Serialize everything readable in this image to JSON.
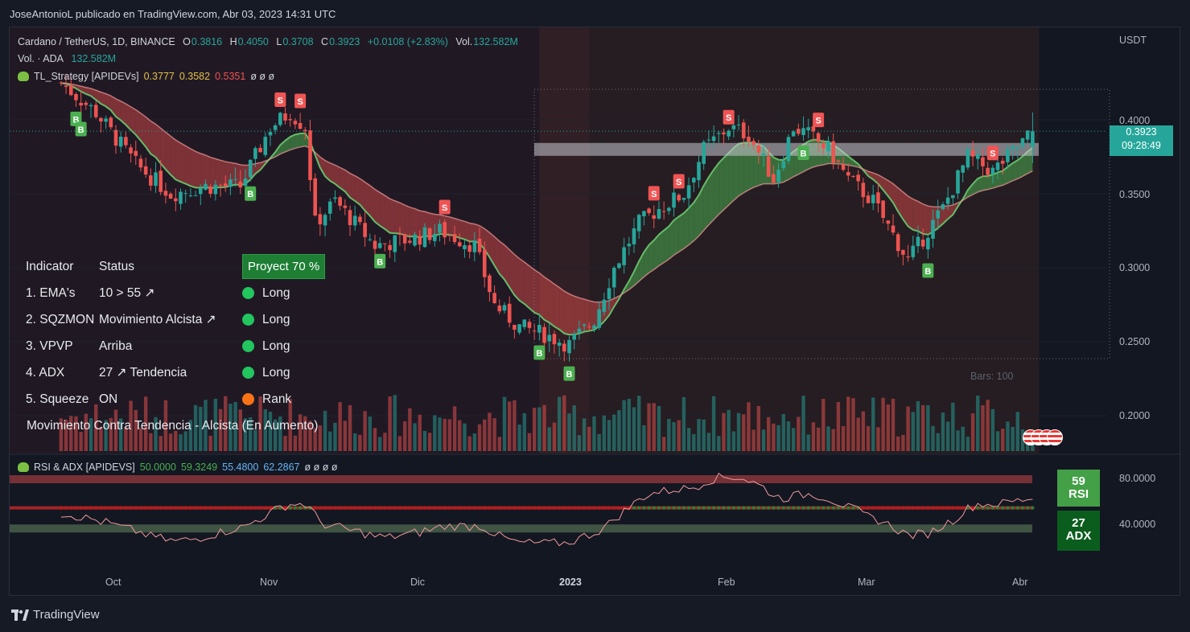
{
  "header": {
    "text": "JoseAntonioL publicado en TradingView.com, Abr 03, 2023 14:31 UTC"
  },
  "legend": {
    "symbol": "Cardano / TetherUS, 1D, BINANCE",
    "o_label": "O",
    "o": "0.3816",
    "h_label": "H",
    "h": "0.4050",
    "l_label": "L",
    "l": "0.3708",
    "c_label": "C",
    "c": "0.3923",
    "change": "+0.0108 (+2.83%)",
    "vol_label": "Vol.",
    "vol": "132.582M",
    "vol_line_label": "Vol. · ADA",
    "vol_line_value": "132.582M",
    "strategy_name": "TL_Strategy [APIDEVs]",
    "strategy_v1": "0.3777",
    "strategy_v2": "0.3582",
    "strategy_v3": "0.5351",
    "strategy_empty": "ø ø ø",
    "rsi_name": "RSI & ADX [APIDEVS]",
    "rsi_v1": "50.0000",
    "rsi_v2": "59.3249",
    "rsi_v3": "55.4800",
    "rsi_v4": "62.2867",
    "rsi_empty": "ø ø ø ø"
  },
  "indicator_table": {
    "header_indicator": "Indicator",
    "header_status": "Status",
    "header_project": "Proyect 70 %",
    "rows": [
      {
        "name": "1. EMA's",
        "status": "10 > 55 ↗",
        "signal": "Long",
        "color": "#22c55e"
      },
      {
        "name": "2. SQZMON",
        "status": "Movimiento Alcista ↗",
        "signal": "Long",
        "color": "#22c55e"
      },
      {
        "name": "3. VPVP",
        "status": "Arriba",
        "signal": "Long",
        "color": "#22c55e"
      },
      {
        "name": "4. ADX",
        "status": "27 ↗ Tendencia",
        "signal": "Long",
        "color": "#22c55e"
      },
      {
        "name": "5. Squeeze",
        "status": "ON",
        "signal": "Rank",
        "color": "#f97316"
      }
    ],
    "footer": "Movimiento Contra Tendencia - Alcista (En Aumento)"
  },
  "axis": {
    "currency": "USDT",
    "price_ticks": [
      "0.4000",
      "0.3500",
      "0.3000",
      "0.2500",
      "0.2000"
    ],
    "rsi_ticks": [
      "80.0000",
      "40.0000"
    ],
    "x_ticks": [
      "Oct",
      "Nov",
      "Dic",
      "2023",
      "Feb",
      "Mar",
      "Abr"
    ],
    "bars_label": "Bars: 100"
  },
  "price_tag": {
    "price": "0.3923",
    "countdown": "09:28:49"
  },
  "rsi_badge": {
    "value": "59",
    "label": "RSI"
  },
  "adx_badge": {
    "value": "27",
    "label": "ADX"
  },
  "signal_labels": {
    "buy": "B",
    "sell": "S"
  },
  "colors": {
    "up": "#26a69a",
    "down": "#ef5350",
    "background": "#131722",
    "buy": "#4caf50",
    "sell": "#f05454"
  },
  "footer": {
    "brand": "TradingView"
  },
  "chart_data": {
    "type": "candlestick",
    "title": "Cardano / TetherUS, 1D, BINANCE",
    "ylabel": "USDT",
    "ylim": [
      0.175,
      0.435
    ],
    "x_ticks": [
      "Oct",
      "Nov",
      "Dic",
      "2023",
      "Feb",
      "Mar",
      "Abr"
    ],
    "close_waypoints": [
      [
        "Sep 20",
        0.425
      ],
      [
        "Sep 27",
        0.405
      ],
      [
        "Oct 05",
        0.37
      ],
      [
        "Oct 12",
        0.35
      ],
      [
        "Oct 19",
        0.355
      ],
      [
        "Oct 26",
        0.355
      ],
      [
        "Nov 01",
        0.395
      ],
      [
        "Nov 05",
        0.405
      ],
      [
        "Nov 08",
        0.395
      ],
      [
        "Nov 10",
        0.33
      ],
      [
        "Nov 14",
        0.345
      ],
      [
        "Nov 22",
        0.315
      ],
      [
        "Nov 30",
        0.32
      ],
      [
        "Dic 05",
        0.325
      ],
      [
        "Dic 12",
        0.315
      ],
      [
        "Dic 16",
        0.275
      ],
      [
        "Dic 21",
        0.26
      ],
      [
        "Dic 26",
        0.255
      ],
      [
        "Dic 31",
        0.248
      ],
      [
        "Ene 05",
        0.265
      ],
      [
        "Ene 09",
        0.3
      ],
      [
        "Ene 14",
        0.33
      ],
      [
        "Ene 18",
        0.34
      ],
      [
        "Ene 23",
        0.35
      ],
      [
        "Ene 27",
        0.38
      ],
      [
        "Feb 01",
        0.395
      ],
      [
        "Feb 05",
        0.39
      ],
      [
        "Feb 10",
        0.36
      ],
      [
        "Feb 14",
        0.395
      ],
      [
        "Feb 17",
        0.39
      ],
      [
        "Feb 21",
        0.38
      ],
      [
        "Feb 25",
        0.36
      ],
      [
        "Mar 02",
        0.345
      ],
      [
        "Mar 09",
        0.305
      ],
      [
        "Mar 12",
        0.32
      ],
      [
        "Mar 16",
        0.34
      ],
      [
        "Mar 21",
        0.375
      ],
      [
        "Mar 26",
        0.365
      ],
      [
        "Abr 01",
        0.385
      ],
      [
        "Abr 03",
        0.3923
      ]
    ],
    "last": {
      "open": 0.3816,
      "high": 0.405,
      "low": 0.3708,
      "close": 0.3923
    },
    "horizontal_level": 0.38,
    "signals": [
      {
        "type": "B",
        "date": "Sep 23"
      },
      {
        "type": "B",
        "date": "Sep 24"
      },
      {
        "type": "B",
        "date": "Oct 28"
      },
      {
        "type": "S",
        "date": "Nov 03"
      },
      {
        "type": "S",
        "date": "Nov 07"
      },
      {
        "type": "B",
        "date": "Nov 23"
      },
      {
        "type": "S",
        "date": "Dic 06"
      },
      {
        "type": "B",
        "date": "Dic 25"
      },
      {
        "type": "B",
        "date": "Dic 31"
      },
      {
        "type": "S",
        "date": "Ene 17"
      },
      {
        "type": "S",
        "date": "Ene 22"
      },
      {
        "type": "S",
        "date": "Feb 01"
      },
      {
        "type": "B",
        "date": "Feb 16"
      },
      {
        "type": "S",
        "date": "Feb 19"
      },
      {
        "type": "B",
        "date": "Mar 13"
      },
      {
        "type": "S",
        "date": "Mar 26"
      }
    ],
    "rsi": {
      "ylim": [
        0,
        100
      ],
      "levels": [
        80,
        40
      ],
      "last": 59
    },
    "adx": {
      "last": 27
    }
  }
}
